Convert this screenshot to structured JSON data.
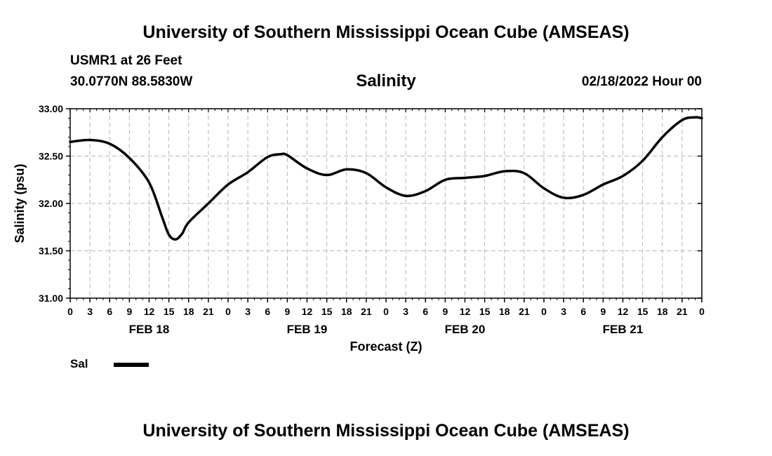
{
  "header": {
    "title": "University of Southern Mississippi Ocean Cube (AMSEAS)",
    "station": "USMR1 at 26 Feet",
    "coords": "30.0770N  88.5830W",
    "variable": "Salinity",
    "datetime": "02/18/2022 Hour 00"
  },
  "footer": {
    "title": "University of Southern Mississippi Ocean Cube (AMSEAS)"
  },
  "legend": {
    "label": "Sal",
    "color": "#000000"
  },
  "chart_data": {
    "type": "line",
    "title": "Salinity",
    "xlabel": "Forecast (Z)",
    "ylabel": "Salinity (psu)",
    "xlim": [
      0,
      96
    ],
    "ylim": [
      31.0,
      33.0
    ],
    "yticks": [
      "31.00",
      "31.50",
      "32.00",
      "32.50",
      "33.00"
    ],
    "xtick_labels": [
      "0",
      "3",
      "6",
      "9",
      "12",
      "15",
      "18",
      "21",
      "0",
      "3",
      "6",
      "9",
      "12",
      "15",
      "18",
      "21",
      "0",
      "3",
      "6",
      "9",
      "12",
      "15",
      "18",
      "21",
      "0",
      "3",
      "6",
      "9",
      "12",
      "15",
      "18",
      "21",
      "0"
    ],
    "day_labels": [
      {
        "label": "FEB 18",
        "hour": 12
      },
      {
        "label": "FEB 19",
        "hour": 36
      },
      {
        "label": "FEB 20",
        "hour": 60
      },
      {
        "label": "FEB 21",
        "hour": 84
      }
    ],
    "grid": true,
    "series": [
      {
        "name": "Sal",
        "color": "#000000",
        "x": [
          0,
          3,
          6,
          9,
          12,
          14,
          15,
          16,
          17,
          18,
          21,
          24,
          27,
          30,
          32,
          33,
          36,
          39,
          42,
          45,
          48,
          51,
          54,
          57,
          60,
          63,
          66,
          69,
          72,
          75,
          78,
          81,
          84,
          87,
          90,
          93,
          95,
          96
        ],
        "values": [
          32.65,
          32.67,
          32.63,
          32.48,
          32.22,
          31.85,
          31.67,
          31.62,
          31.68,
          31.8,
          32.0,
          32.2,
          32.33,
          32.49,
          32.52,
          32.51,
          32.37,
          32.3,
          32.36,
          32.32,
          32.17,
          32.08,
          32.13,
          32.25,
          32.27,
          32.29,
          32.34,
          32.32,
          32.16,
          32.06,
          32.09,
          32.2,
          32.29,
          32.45,
          32.7,
          32.88,
          32.91,
          32.9
        ]
      }
    ]
  }
}
